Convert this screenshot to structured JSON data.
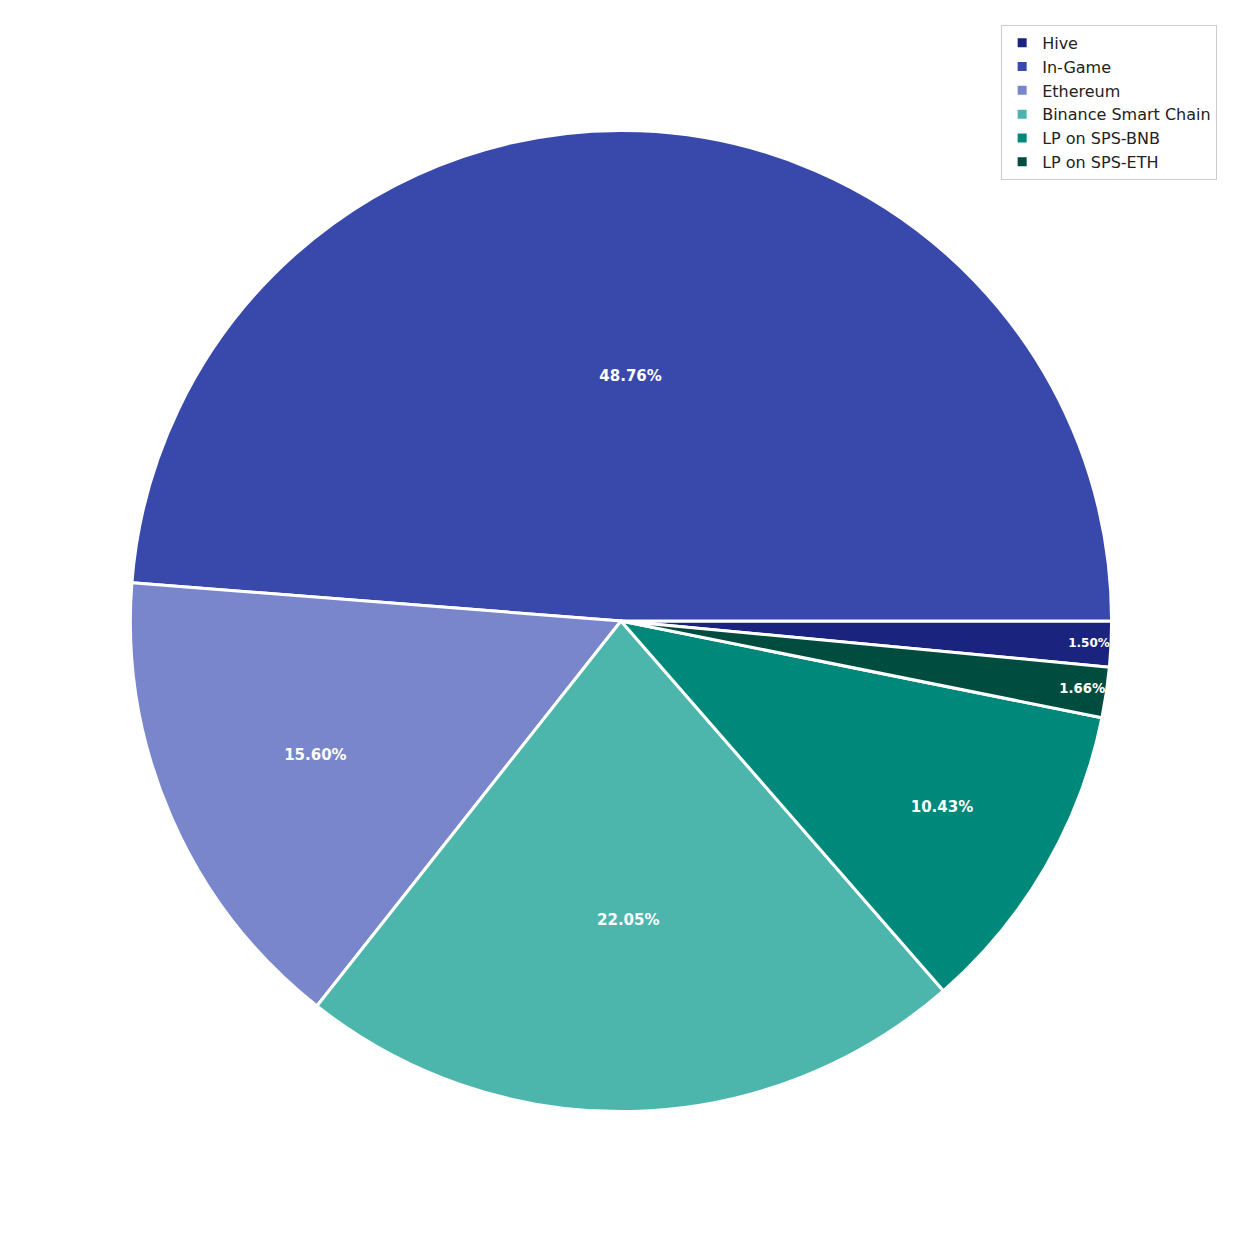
{
  "chart_data": {
    "type": "pie",
    "categories": [
      "Hive",
      "In-Game",
      "Ethereum",
      "Binance Smart Chain",
      "LP on SPS-BNB",
      "LP on SPS-ETH"
    ],
    "values": [
      1.5,
      48.76,
      15.6,
      22.05,
      10.43,
      1.66
    ],
    "value_labels": [
      "1.50%",
      "48.76%",
      "15.60%",
      "22.05%",
      "10.43%",
      "1.66%"
    ],
    "colors": [
      "#1a237e",
      "#3949ab",
      "#7986cb",
      "#4db6ac",
      "#00897b",
      "#004d40"
    ],
    "data_labels": true,
    "legend": "upper right"
  }
}
